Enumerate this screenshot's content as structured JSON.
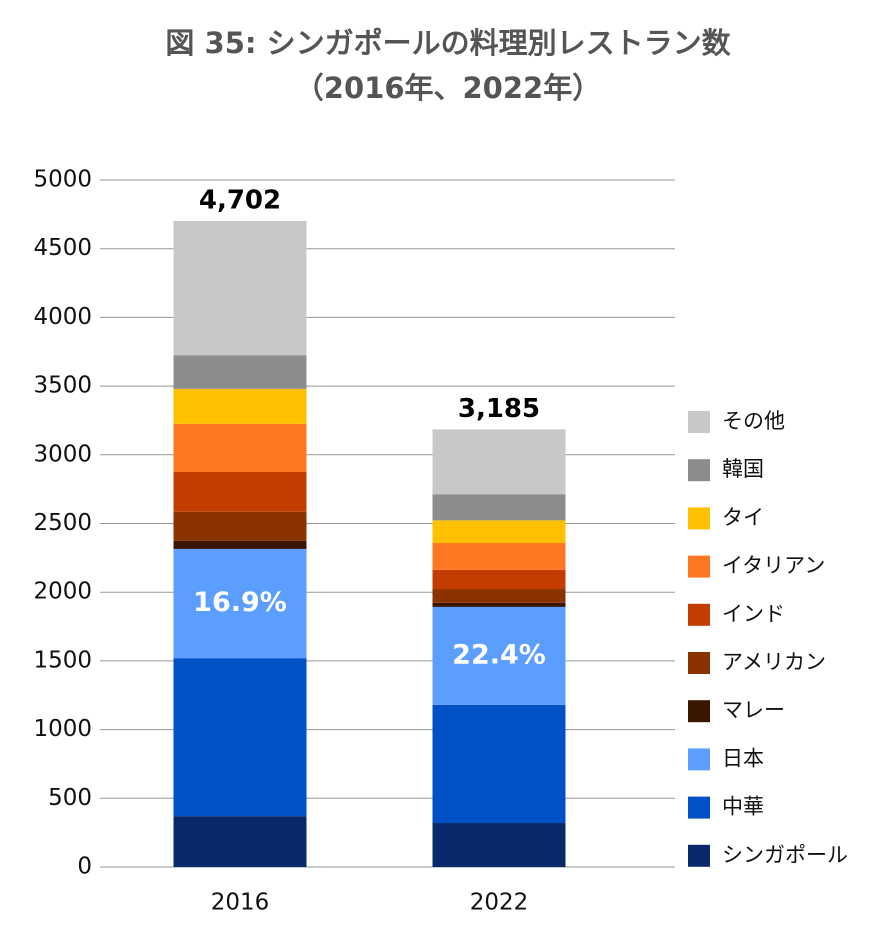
{
  "chart_data": {
    "type": "stacked_bar",
    "title": "図 35: シンガポールの料理別レストラン数",
    "subtitle": "（2016年、2022年）",
    "categories": [
      "2016",
      "2022"
    ],
    "series": [
      {
        "name": "シンガポール",
        "color": "#08296b",
        "values": [
          370,
          320
        ]
      },
      {
        "name": "中華",
        "color": "#0050c8",
        "values": [
          1150,
          860
        ]
      },
      {
        "name": "日本",
        "color": "#5b9eff",
        "values": [
          795,
          713
        ],
        "share_values": [
          16.9,
          22.4
        ],
        "share_labels": [
          "16.9%",
          "22.4%"
        ]
      },
      {
        "name": "マレー",
        "color": "#3a1500",
        "values": [
          60,
          30
        ]
      },
      {
        "name": "アメリカン",
        "color": "#8a3300",
        "values": [
          210,
          100
        ]
      },
      {
        "name": "インド",
        "color": "#c33c00",
        "values": [
          290,
          140
        ]
      },
      {
        "name": "イタリアン",
        "color": "#ff7722",
        "values": [
          350,
          195
        ]
      },
      {
        "name": "タイ",
        "color": "#ffc000",
        "values": [
          255,
          165
        ]
      },
      {
        "name": "韓国",
        "color": "#8c8c8c",
        "values": [
          245,
          190
        ]
      },
      {
        "name": "その他",
        "color": "#c8c8c8",
        "values": [
          977,
          472
        ]
      }
    ],
    "totals": [
      4702,
      3185
    ],
    "total_labels": [
      "4,702",
      "3,185"
    ],
    "ylim": [
      0,
      5000
    ],
    "yticks": [
      0,
      500,
      1000,
      1500,
      2000,
      2500,
      3000,
      3500,
      4000,
      4500,
      5000
    ],
    "grid": true,
    "legend": "right"
  }
}
